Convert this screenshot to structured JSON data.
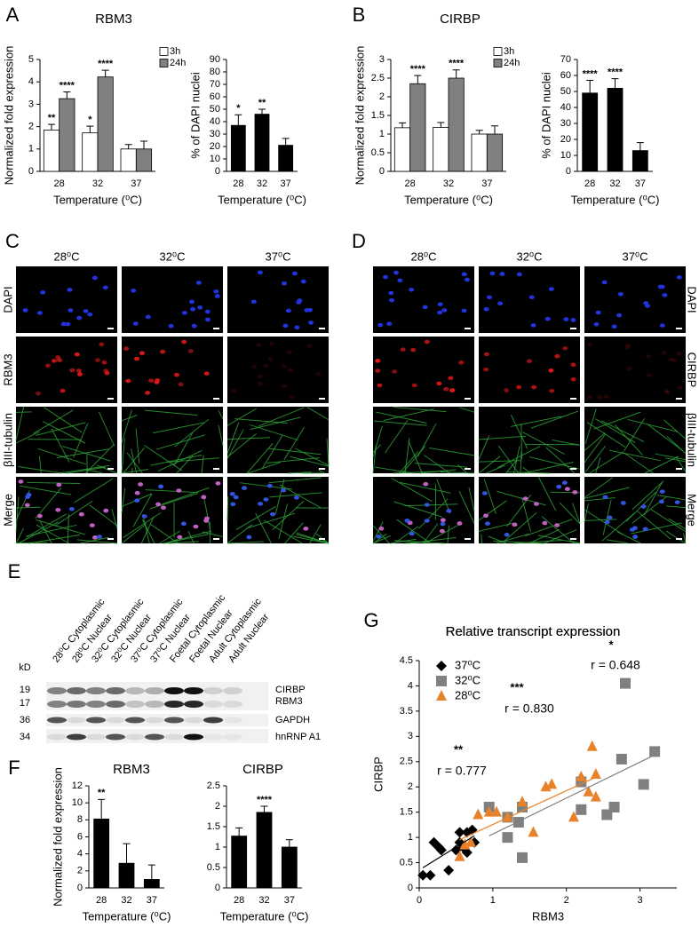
{
  "panel_labels": [
    "A",
    "B",
    "C",
    "D",
    "E",
    "F",
    "G"
  ],
  "chart_data": [
    {
      "type": "bar",
      "title": "RBM3",
      "ylabel": "Normalized fold expression",
      "xlabel": "Temperature (⁰C)",
      "categories": [
        "28",
        "32",
        "37"
      ],
      "ylim": [
        0,
        5
      ],
      "yticks": [
        0,
        1,
        2,
        3,
        4,
        5
      ],
      "series": [
        {
          "name": "3h",
          "color": "#ffffff",
          "values": [
            1.85,
            1.72,
            1.0
          ],
          "errors": [
            0.25,
            0.3,
            0.2
          ],
          "significance": [
            "**",
            "*",
            null
          ]
        },
        {
          "name": "24h",
          "color": "#808080",
          "values": [
            3.25,
            4.22,
            1.0
          ],
          "errors": [
            0.3,
            0.3,
            0.35
          ],
          "significance": [
            "****",
            "****",
            null
          ]
        }
      ]
    },
    {
      "type": "bar",
      "ylabel": "% of DAPI nuclei",
      "xlabel": "Temperature (⁰C)",
      "categories": [
        "28",
        "32",
        "37"
      ],
      "ylim": [
        0,
        90
      ],
      "yticks": [
        0,
        10,
        20,
        30,
        40,
        50,
        60,
        70,
        80,
        90
      ],
      "color": "#000000",
      "values": [
        37,
        46,
        21
      ],
      "errors": [
        8.5,
        4,
        5.5
      ],
      "significance": [
        "*",
        "**",
        null
      ]
    },
    {
      "type": "bar",
      "title": "CIRBP",
      "ylabel": "Normalized fold expression",
      "xlabel": "Temperature (⁰C)",
      "categories": [
        "28",
        "32",
        "37"
      ],
      "ylim": [
        0,
        3
      ],
      "yticks": [
        0,
        0.5,
        1,
        1.5,
        2,
        2.5,
        3
      ],
      "series": [
        {
          "name": "3h",
          "color": "#ffffff",
          "values": [
            1.17,
            1.18,
            1.0
          ],
          "errors": [
            0.13,
            0.13,
            0.1
          ],
          "significance": [
            null,
            null,
            null
          ]
        },
        {
          "name": "24h",
          "color": "#808080",
          "values": [
            2.35,
            2.5,
            1.0
          ],
          "errors": [
            0.22,
            0.22,
            0.22
          ],
          "significance": [
            "****",
            "****",
            null
          ]
        }
      ]
    },
    {
      "type": "bar",
      "ylabel": "% of DAPI nuclei",
      "xlabel": "Temperature (⁰C)",
      "categories": [
        "28",
        "32",
        "37"
      ],
      "ylim": [
        0,
        70
      ],
      "yticks": [
        0,
        10,
        20,
        30,
        40,
        50,
        60,
        70
      ],
      "color": "#000000",
      "values": [
        49,
        52,
        13
      ],
      "errors": [
        8,
        6,
        5
      ],
      "significance": [
        "****",
        "****",
        null
      ]
    },
    {
      "type": "bar",
      "title": "RBM3",
      "ylabel": "Normalized fold expression",
      "xlabel": "Temperature (⁰C)",
      "categories": [
        "28",
        "32",
        "37"
      ],
      "ylim": [
        0,
        12
      ],
      "yticks": [
        0,
        2,
        4,
        6,
        8,
        10,
        12
      ],
      "color": "#000000",
      "values": [
        8.1,
        2.9,
        1.0
      ],
      "errors": [
        2.3,
        2.3,
        1.7
      ],
      "significance": [
        "**",
        null,
        null
      ]
    },
    {
      "type": "bar",
      "title": "CIRBP",
      "xlabel": "Temperature (⁰C)",
      "categories": [
        "28",
        "32",
        "37"
      ],
      "ylim": [
        0,
        2.5
      ],
      "yticks": [
        0,
        0.5,
        1,
        1.5,
        2,
        2.5
      ],
      "color": "#000000",
      "values": [
        1.27,
        1.85,
        1.0
      ],
      "errors": [
        0.2,
        0.15,
        0.18
      ],
      "significance": [
        null,
        "****",
        null
      ]
    },
    {
      "type": "scatter",
      "title": "Relative transcript expression",
      "xlabel": "RBM3",
      "ylabel": "CIRBP",
      "xlim": [
        0,
        3.5
      ],
      "xticks": [
        0,
        1,
        2,
        3
      ],
      "ylim": [
        0,
        4.5
      ],
      "yticks": [
        0,
        0.5,
        1,
        1.5,
        2,
        2.5,
        3,
        3.5,
        4,
        4.5
      ],
      "legend": "top-left",
      "series": [
        {
          "name": "37⁰C",
          "color": "#000000",
          "marker": "diamond",
          "x": [
            0.05,
            0.15,
            0.2,
            0.27,
            0.3,
            0.4,
            0.5,
            0.55,
            0.55,
            0.6,
            0.65,
            0.65,
            0.72,
            0.75
          ],
          "y": [
            0.25,
            0.25,
            0.9,
            0.8,
            0.75,
            0.35,
            0.75,
            0.9,
            1.1,
            0.8,
            0.7,
            1.1,
            1.15,
            0.9
          ]
        },
        {
          "name": "32⁰C",
          "color": "#808080",
          "marker": "square",
          "x": [
            0.95,
            1.2,
            1.2,
            1.35,
            1.4,
            1.4,
            2.2,
            2.2,
            2.55,
            2.65,
            2.75,
            2.8,
            3.05,
            3.2
          ],
          "y": [
            1.6,
            1.0,
            1.4,
            1.3,
            0.6,
            1.6,
            2.1,
            1.55,
            1.45,
            1.6,
            2.55,
            4.05,
            2.05,
            2.7
          ]
        },
        {
          "name": "28⁰C",
          "color": "#e8822a",
          "marker": "triangle",
          "x": [
            0.55,
            0.62,
            0.7,
            0.8,
            0.95,
            1.05,
            1.2,
            1.4,
            1.55,
            1.72,
            1.8,
            2.1,
            2.2,
            2.3,
            2.35,
            2.4,
            2.4
          ],
          "y": [
            0.62,
            0.85,
            0.9,
            1.45,
            1.5,
            1.5,
            1.4,
            1.7,
            1.1,
            2.0,
            2.05,
            1.4,
            2.2,
            1.9,
            2.8,
            1.8,
            2.25
          ]
        }
      ],
      "annotations": [
        {
          "text": "*",
          "color": "#808080"
        },
        {
          "text": "r = 0.648",
          "color": "#808080"
        },
        {
          "text": "***",
          "color": "#e8822a"
        },
        {
          "text": "r = 0.830",
          "color": "#e8822a"
        },
        {
          "text": "**",
          "color": "#000000"
        },
        {
          "text": "r = 0.777",
          "color": "#000000"
        }
      ]
    }
  ],
  "microscopy": [
    {
      "columns": [
        "28⁰C",
        "32⁰C",
        "37⁰C"
      ],
      "rows": [
        "DAPI",
        "RBM3",
        "βIII-tubulin",
        "Merge"
      ]
    },
    {
      "columns": [
        "28⁰C",
        "32⁰C",
        "37⁰C"
      ],
      "rows": [
        "DAPI",
        "CIRBP",
        "βIII-tubulin",
        "Merge"
      ]
    }
  ],
  "blot": {
    "unit": "kD",
    "markers": [
      "19",
      "17",
      "36",
      "34"
    ],
    "lanes": [
      "28⁰C Cytoplasmic",
      "28⁰C Nuclear",
      "32⁰C Cytoplasmic",
      "32⁰C Nuclear",
      "37⁰C Cytoplasmic",
      "37⁰C Nuclear",
      "Foetal Cytoplasmic",
      "Foetal Nuclear",
      "Adult Cytoplasmic",
      "Adult Nuclear"
    ],
    "bands": [
      "CIRBP",
      "RBM3",
      "GAPDH",
      "hnRNP A1"
    ]
  }
}
